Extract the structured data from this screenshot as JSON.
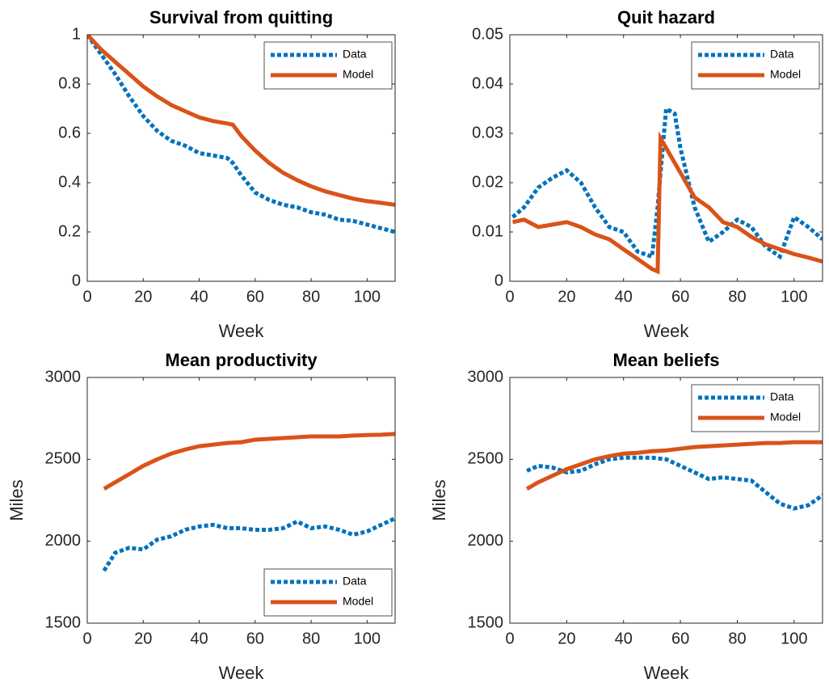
{
  "chart_data": [
    {
      "type": "line",
      "title": "Survival from quitting",
      "x_label": "Week",
      "x": [
        0,
        5,
        10,
        15,
        20,
        25,
        30,
        35,
        40,
        45,
        50,
        52,
        55,
        60,
        65,
        70,
        75,
        80,
        85,
        90,
        95,
        100,
        105,
        110
      ],
      "series": [
        {
          "name": "Data",
          "color": "#0072bd",
          "style": "dotted",
          "values": [
            1,
            0.92,
            0.84,
            0.75,
            0.67,
            0.61,
            0.57,
            0.55,
            0.52,
            0.51,
            0.5,
            0.48,
            0.43,
            0.36,
            0.33,
            0.31,
            0.3,
            0.28,
            0.27,
            0.25,
            0.245,
            0.23,
            0.215,
            0.2
          ]
        },
        {
          "name": "Model",
          "color": "#d95319",
          "style": "solid",
          "values": [
            1,
            0.94,
            0.89,
            0.84,
            0.79,
            0.75,
            0.715,
            0.69,
            0.665,
            0.65,
            0.64,
            0.635,
            0.59,
            0.53,
            0.48,
            0.44,
            0.41,
            0.385,
            0.365,
            0.35,
            0.335,
            0.325,
            0.318,
            0.31
          ]
        }
      ],
      "xlim": [
        0,
        110
      ],
      "xticks": [
        0,
        20,
        40,
        60,
        80,
        100
      ],
      "ylim": [
        0,
        1
      ],
      "yticks": [
        0,
        0.2,
        0.4,
        0.6,
        0.8,
        1
      ],
      "legend": "northeast"
    },
    {
      "type": "line",
      "title": "Quit hazard",
      "x_label": "Week",
      "x": [
        1,
        5,
        10,
        15,
        20,
        25,
        30,
        35,
        40,
        45,
        50,
        52,
        53,
        55,
        58,
        60,
        65,
        70,
        75,
        80,
        85,
        90,
        95,
        100,
        105,
        110
      ],
      "series": [
        {
          "name": "Data",
          "color": "#0072bd",
          "style": "dotted",
          "values": [
            0.013,
            0.015,
            0.019,
            0.021,
            0.0225,
            0.02,
            0.015,
            0.011,
            0.01,
            0.006,
            0.005,
            0.015,
            0.022,
            0.035,
            0.034,
            0.027,
            0.015,
            0.008,
            0.01,
            0.0125,
            0.011,
            0.007,
            0.005,
            0.013,
            0.011,
            0.0085
          ]
        },
        {
          "name": "Model",
          "color": "#d95319",
          "style": "solid",
          "values": [
            0.012,
            0.0125,
            0.011,
            0.0115,
            0.012,
            0.011,
            0.0095,
            0.0085,
            0.0065,
            0.0045,
            0.0025,
            0.002,
            0.029,
            0.027,
            0.024,
            0.022,
            0.017,
            0.015,
            0.012,
            0.011,
            0.009,
            0.0075,
            0.0065,
            0.0055,
            0.0048,
            0.004
          ]
        }
      ],
      "xlim": [
        0,
        110
      ],
      "xticks": [
        0,
        20,
        40,
        60,
        80,
        100
      ],
      "ylim": [
        0,
        0.05
      ],
      "yticks": [
        0,
        0.01,
        0.02,
        0.03,
        0.04,
        0.05
      ],
      "legend": "northeast"
    },
    {
      "type": "line",
      "title": "Mean productivity",
      "x_label": "Week",
      "y_label": "Miles",
      "x": [
        6,
        10,
        15,
        20,
        25,
        30,
        35,
        40,
        45,
        50,
        55,
        60,
        65,
        70,
        75,
        80,
        85,
        90,
        95,
        100,
        105,
        110
      ],
      "series": [
        {
          "name": "Data",
          "color": "#0072bd",
          "style": "dotted",
          "values": [
            1820,
            1930,
            1960,
            1950,
            2010,
            2030,
            2070,
            2090,
            2100,
            2080,
            2080,
            2070,
            2070,
            2080,
            2120,
            2080,
            2090,
            2070,
            2040,
            2060,
            2100,
            2140
          ]
        },
        {
          "name": "Model",
          "color": "#d95319",
          "style": "solid",
          "values": [
            2320,
            2360,
            2410,
            2460,
            2500,
            2535,
            2560,
            2580,
            2590,
            2600,
            2605,
            2620,
            2625,
            2630,
            2635,
            2640,
            2640,
            2640,
            2645,
            2648,
            2650,
            2655
          ]
        }
      ],
      "xlim": [
        0,
        110
      ],
      "xticks": [
        0,
        20,
        40,
        60,
        80,
        100
      ],
      "ylim": [
        1500,
        3000
      ],
      "yticks": [
        1500,
        2000,
        2500,
        3000
      ],
      "legend": "southeast"
    },
    {
      "type": "line",
      "title": "Mean beliefs",
      "x_label": "Week",
      "y_label": "Miles",
      "x": [
        6,
        10,
        15,
        20,
        25,
        30,
        35,
        40,
        45,
        50,
        55,
        60,
        65,
        70,
        75,
        80,
        85,
        90,
        95,
        100,
        105,
        110
      ],
      "series": [
        {
          "name": "Data",
          "color": "#0072bd",
          "style": "dotted",
          "values": [
            2430,
            2460,
            2450,
            2420,
            2430,
            2470,
            2500,
            2510,
            2510,
            2510,
            2500,
            2460,
            2420,
            2380,
            2390,
            2380,
            2370,
            2300,
            2230,
            2200,
            2220,
            2280
          ]
        },
        {
          "name": "Model",
          "color": "#d95319",
          "style": "solid",
          "values": [
            2320,
            2360,
            2400,
            2440,
            2470,
            2500,
            2520,
            2535,
            2540,
            2550,
            2555,
            2565,
            2575,
            2580,
            2585,
            2590,
            2595,
            2600,
            2600,
            2605,
            2605,
            2605
          ]
        }
      ],
      "xlim": [
        0,
        110
      ],
      "xticks": [
        0,
        20,
        40,
        60,
        80,
        100
      ],
      "ylim": [
        1500,
        3000
      ],
      "yticks": [
        1500,
        2000,
        2500,
        3000
      ],
      "legend": "northeast"
    }
  ]
}
